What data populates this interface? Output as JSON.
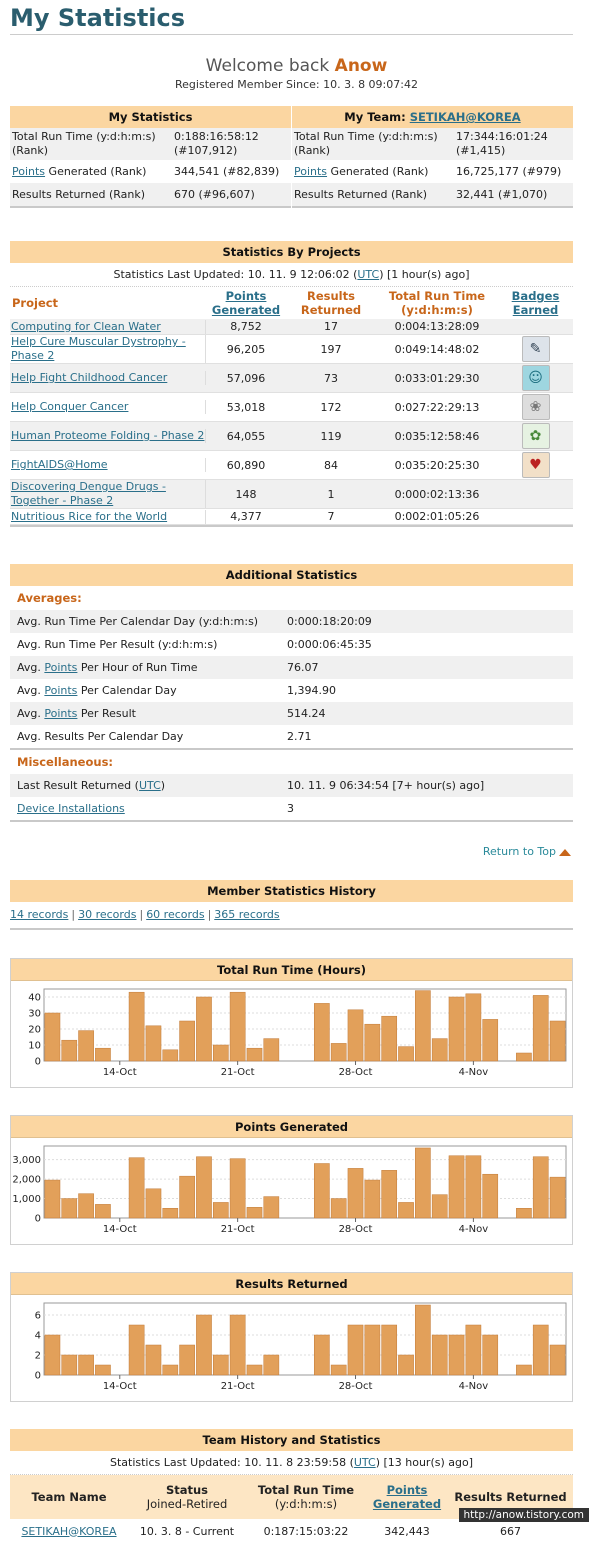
{
  "page_title": "My Statistics",
  "welcome": {
    "prefix": "Welcome back",
    "username": "Anow",
    "since": "Registered Member Since: 10. 3. 8 09:07:42"
  },
  "my_stats": {
    "header": "My Statistics",
    "rows": [
      {
        "label": "Total Run Time (y:d:h:m:s) (Rank)",
        "value": "0:188:16:58:12 (#107,912)"
      },
      {
        "label_link": "Points",
        "label_rest": " Generated (Rank)",
        "value": "344,541 (#82,839)"
      },
      {
        "label": "Results Returned (Rank)",
        "value": "670 (#96,607)"
      }
    ]
  },
  "team_stats": {
    "header_prefix": "My Team: ",
    "header_link": "SETIKAH@KOREA",
    "rows": [
      {
        "label": "Total Run Time (y:d:h:m:s) (Rank)",
        "value": "17:344:16:01:24 (#1,415)"
      },
      {
        "label_link": "Points",
        "label_rest": " Generated (Rank)",
        "value": "16,725,177 (#979)"
      },
      {
        "label": "Results Returned (Rank)",
        "value": "32,441 (#1,070)"
      }
    ]
  },
  "projects": {
    "header": "Statistics By Projects",
    "updated_prefix": "Statistics Last Updated: 10. 11. 9 12:06:02 (",
    "updated_link": "UTC",
    "updated_suffix": ") [1 hour(s) ago]",
    "col_project": "Project",
    "col_points": "Points Generated",
    "col_results": "Results Returned",
    "col_runtime": "Total Run Time (y:d:h:m:s)",
    "col_badges": "Badges Earned",
    "rows": [
      {
        "name": "Computing for Clean Water",
        "points": "8,752",
        "results": "17",
        "runtime": "0:004:13:28:09",
        "badge": ""
      },
      {
        "name": "Help Cure Muscular Dystrophy - Phase 2",
        "points": "96,205",
        "results": "197",
        "runtime": "0:049:14:48:02",
        "badge": "dystrophy-badge-icon"
      },
      {
        "name": "Help Fight Childhood Cancer",
        "points": "57,096",
        "results": "73",
        "runtime": "0:033:01:29:30",
        "badge": "childhood-cancer-badge-icon"
      },
      {
        "name": "Help Conquer Cancer",
        "points": "53,018",
        "results": "172",
        "runtime": "0:027:22:29:13",
        "badge": "conquer-cancer-badge-icon"
      },
      {
        "name": "Human Proteome Folding - Phase 2",
        "points": "64,055",
        "results": "119",
        "runtime": "0:035:12:58:46",
        "badge": "proteome-badge-icon"
      },
      {
        "name": "FightAIDS@Home",
        "points": "60,890",
        "results": "84",
        "runtime": "0:035:20:25:30",
        "badge": "aids-ribbon-badge-icon"
      },
      {
        "name": "Discovering Dengue Drugs - Together - Phase 2",
        "points": "148",
        "results": "1",
        "runtime": "0:000:02:13:36",
        "badge": ""
      },
      {
        "name": "Nutritious Rice for the World",
        "points": "4,377",
        "results": "7",
        "runtime": "0:002:01:05:26",
        "badge": ""
      }
    ]
  },
  "additional": {
    "header": "Additional Statistics",
    "averages_label": "Averages:",
    "averages": [
      {
        "label": "Avg. Run Time Per Calendar Day (y:d:h:m:s)",
        "value": "0:000:18:20:09"
      },
      {
        "label": "Avg. Run Time Per Result (y:d:h:m:s)",
        "value": "0:000:06:45:35"
      },
      {
        "pre": "Avg. ",
        "link": "Points",
        "post": " Per Hour of Run Time",
        "value": "76.07"
      },
      {
        "pre": "Avg. ",
        "link": "Points",
        "post": " Per Calendar Day",
        "value": "1,394.90"
      },
      {
        "pre": "Avg. ",
        "link": "Points",
        "post": " Per Result",
        "value": "514.24"
      },
      {
        "label": "Avg. Results Per Calendar Day",
        "value": "2.71"
      }
    ],
    "misc_label": "Miscellaneous:",
    "misc": {
      "last_pre": "Last Result Returned (",
      "last_link": "UTC",
      "last_post": ")",
      "last_value": "10. 11. 9 06:34:54 [7+ hour(s) ago]",
      "devices_link": "Device Installations",
      "devices_value": "3"
    }
  },
  "return_to_top": "Return to Top",
  "history": {
    "header": "Member Statistics History",
    "links": [
      "14 records",
      "30 records",
      "60 records",
      "365 records"
    ]
  },
  "chart_data": [
    {
      "type": "bar",
      "title": "Total Run Time (Hours)",
      "ylim": [
        0,
        45
      ],
      "yticks": [
        0,
        10,
        20,
        30,
        40
      ],
      "xtick_labels": [
        "14-Oct",
        "21-Oct",
        "28-Oct",
        "4-Nov"
      ],
      "xtick_index": [
        4,
        11,
        18,
        25
      ],
      "values": [
        30,
        13,
        19,
        8,
        0,
        43,
        22,
        7,
        25,
        40,
        10,
        43,
        8,
        14,
        0,
        0,
        36,
        11,
        32,
        23,
        28,
        9,
        44,
        14,
        40,
        42,
        26,
        0,
        5,
        41,
        25
      ]
    },
    {
      "type": "bar",
      "title": "Points Generated",
      "ylim": [
        0,
        3700
      ],
      "yticks": [
        0,
        1000,
        2000,
        3000
      ],
      "ytick_labels": [
        "0",
        "1,000",
        "2,000",
        "3,000"
      ],
      "xtick_labels": [
        "14-Oct",
        "21-Oct",
        "28-Oct",
        "4-Nov"
      ],
      "xtick_index": [
        4,
        11,
        18,
        25
      ],
      "values": [
        1950,
        1000,
        1250,
        700,
        0,
        3100,
        1500,
        500,
        2150,
        3150,
        800,
        3050,
        550,
        1100,
        0,
        0,
        2800,
        1000,
        2550,
        1950,
        2450,
        800,
        3600,
        1200,
        3200,
        3200,
        2250,
        0,
        500,
        3150,
        2100
      ]
    },
    {
      "type": "bar",
      "title": "Results Returned",
      "ylim": [
        0,
        7.2
      ],
      "yticks": [
        0,
        2,
        4,
        6
      ],
      "xtick_labels": [
        "14-Oct",
        "21-Oct",
        "28-Oct",
        "4-Nov"
      ],
      "xtick_index": [
        4,
        11,
        18,
        25
      ],
      "values": [
        4,
        2,
        2,
        1,
        0,
        5,
        3,
        1,
        3,
        6,
        2,
        6,
        1,
        2,
        0,
        0,
        4,
        1,
        5,
        5,
        5,
        2,
        7,
        4,
        4,
        5,
        4,
        0,
        1,
        5,
        3
      ]
    }
  ],
  "team_history": {
    "header": "Team History and Statistics",
    "updated_prefix": "Statistics Last Updated: 10. 11. 8 23:59:58 (",
    "updated_link": "UTC",
    "updated_suffix": ") [13 hour(s) ago]",
    "col_name": "Team Name",
    "col_status": "Status",
    "col_status_sub": "Joined-Retired",
    "col_runtime": "Total Run Time",
    "col_runtime_sub": "(y:d:h:m:s)",
    "col_points": "Points Generated",
    "col_results": "Results Returned",
    "row": {
      "name": "SETIKAH@KOREA",
      "status": "10. 3. 8 - Current",
      "runtime": "0:187:15:03:22",
      "points": "342,443",
      "results": "667"
    }
  },
  "watermark": "http://anow.tistory.com",
  "colors": {
    "bar": "#e2a05a",
    "header_bg": "#fbd6a1",
    "accent": "#c8661a",
    "link": "#2a6f8a"
  }
}
